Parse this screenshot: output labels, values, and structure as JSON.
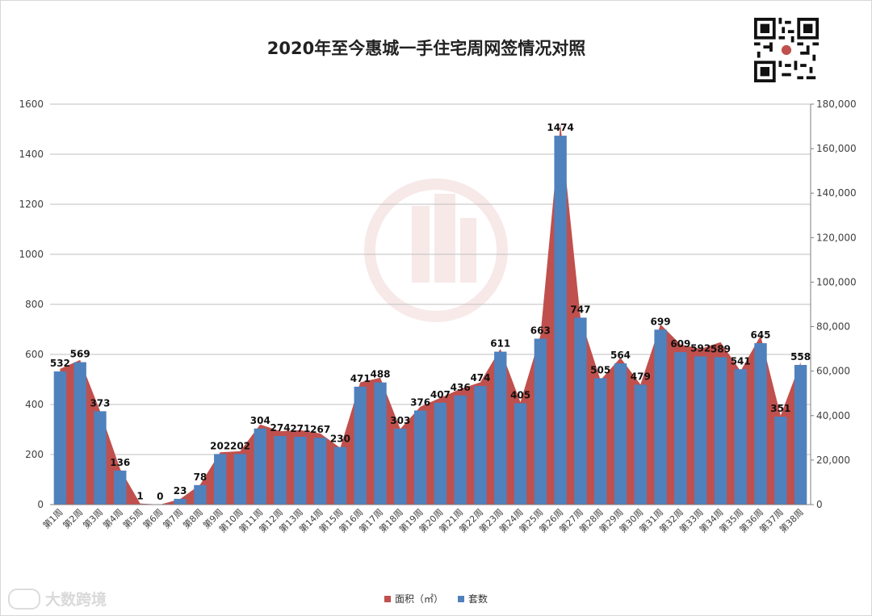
{
  "page": {
    "watermark_text": "大数跨境"
  },
  "chart_data": {
    "type": "bar",
    "title": "2020年至今惠城一手住宅周网签情况对照",
    "categories": [
      "第1周",
      "第2周",
      "第3周",
      "第4周",
      "第5周",
      "第6周",
      "第7周",
      "第8周",
      "第9周",
      "第10周",
      "第11周",
      "第12周",
      "第13周",
      "第14周",
      "第15周",
      "第16周",
      "第17周",
      "第18周",
      "第19周",
      "第20周",
      "第21周",
      "第22周",
      "第23周",
      "第24周",
      "第25周",
      "第26周",
      "第27周",
      "第28周",
      "第29周",
      "第30周",
      "第31周",
      "第32周",
      "第33周",
      "第34周",
      "第35周",
      "第36周",
      "第37周",
      "第38周"
    ],
    "series": [
      {
        "name": "面积（㎡）",
        "type": "area",
        "axis": "right",
        "color": "#c0504d",
        "values": [
          61000,
          65000,
          42000,
          16000,
          500,
          0,
          2500,
          9000,
          23500,
          24000,
          36000,
          33000,
          33500,
          32000,
          25500,
          55000,
          57000,
          34000,
          44000,
          48000,
          52000,
          55000,
          70000,
          46000,
          76000,
          171000,
          84000,
          56000,
          66000,
          54000,
          81000,
          72000,
          70000,
          73000,
          60000,
          76000,
          40000,
          64000
        ]
      },
      {
        "name": "套数",
        "type": "bar",
        "axis": "left",
        "color": "#4f81bd",
        "values": [
          532,
          569,
          373,
          136,
          1,
          0,
          23,
          78,
          202,
          202,
          304,
          274,
          271,
          267,
          230,
          471,
          488,
          303,
          376,
          407,
          436,
          474,
          611,
          405,
          663,
          1474,
          747,
          505,
          564,
          479,
          699,
          609,
          592,
          589,
          541,
          645,
          351,
          558
        ]
      }
    ],
    "y_left": {
      "min": 0,
      "max": 1600,
      "ticks": [
        "0",
        "200",
        "400",
        "600",
        "800",
        "1000",
        "1200",
        "1400",
        "1600"
      ]
    },
    "y_right": {
      "min": 0,
      "max": 180000,
      "ticks": [
        "0",
        "20,000",
        "40,000",
        "60,000",
        "80,000",
        "100,000",
        "120,000",
        "140,000",
        "160,000",
        "180,000"
      ]
    },
    "grid": true,
    "legend": "bottom"
  }
}
